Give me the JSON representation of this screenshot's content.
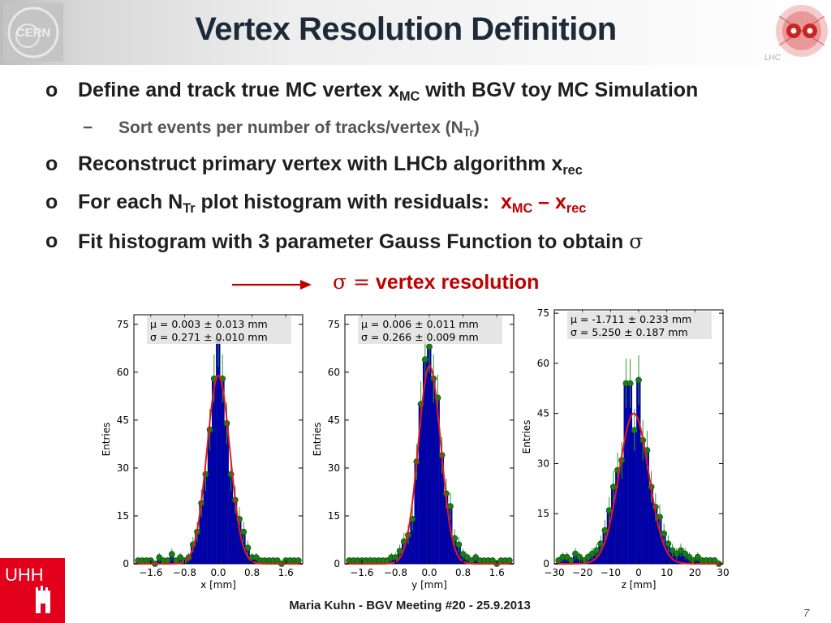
{
  "slide": {
    "title": "Vertex Resolution Definition",
    "logo_left_text": "CERN",
    "logo_right_text": "LHC",
    "logo_bottom_text": "UHH"
  },
  "bullets": [
    {
      "marker": "o",
      "text": "Define and track true MC vertex x",
      "sub": "MC",
      "tail": " with BGV toy MC Simulation"
    },
    {
      "marker": "−",
      "text": "Sort events per number of tracks/vertex (N",
      "sub": "Tr",
      "tail": ")"
    },
    {
      "marker": "o",
      "text": "Reconstruct primary vertex with LHCb algorithm x",
      "sub": "rec",
      "tail": ""
    },
    {
      "marker": "o",
      "text": "For each N",
      "sub": "Tr",
      "tail": " plot histogram with residuals:  ",
      "red_a": "x",
      "red_a_sub": "MC",
      "red_mid": " – x",
      "red_b_sub": "rec"
    },
    {
      "marker": "o",
      "text": "Fit histogram with 3 parameter Gauss Function to obtain ",
      "symbol": "σ"
    }
  ],
  "resolution": {
    "symbol": "σ =",
    "label": " vertex resolution"
  },
  "footer": {
    "author": "Maria Kuhn - BGV Meeting #20 - 25.9.2013",
    "page": "7"
  },
  "colors": {
    "title": "#1d2a3a",
    "accent_red": "#c00000",
    "bar_blue": "#0000b3",
    "fit_red": "#e31a1c",
    "point_green": "#1a7d1a"
  },
  "chart_data": [
    {
      "type": "bar",
      "xlabel": "x [mm]",
      "ylabel": "Entries",
      "xlim": [
        -2.0,
        2.0
      ],
      "ylim": [
        0,
        78
      ],
      "xticks": [
        -1.6,
        -0.8,
        0.0,
        0.8,
        1.6
      ],
      "xtick_labels": [
        "−1.6",
        "−0.8",
        "0.0",
        "0.8",
        "1.6"
      ],
      "yticks": [
        0,
        15,
        30,
        45,
        60,
        75
      ],
      "stats": [
        "μ = 0.003 ± 0.013 mm",
        "σ = 0.271 ± 0.010 mm"
      ],
      "fit": {
        "mu": 0.003,
        "sigma": 0.271,
        "amplitude": 59
      },
      "x": [
        -1.9,
        -1.8,
        -1.7,
        -1.6,
        -1.5,
        -1.4,
        -1.3,
        -1.2,
        -1.1,
        -1.0,
        -0.9,
        -0.8,
        -0.7,
        -0.6,
        -0.5,
        -0.4,
        -0.3,
        -0.2,
        -0.1,
        0.0,
        0.1,
        0.2,
        0.3,
        0.4,
        0.5,
        0.6,
        0.7,
        0.8,
        0.9,
        1.0,
        1.1,
        1.2,
        1.3,
        1.4,
        1.5,
        1.6,
        1.7,
        1.8,
        1.9
      ],
      "values": [
        1,
        1,
        1,
        1,
        0,
        2,
        1,
        1,
        3,
        1,
        2,
        1,
        2,
        6,
        10,
        19,
        28,
        42,
        58,
        70,
        58,
        44,
        28,
        20,
        14,
        10,
        5,
        2,
        2,
        1,
        1,
        1,
        1,
        1,
        0,
        1,
        1,
        1,
        1
      ]
    },
    {
      "type": "bar",
      "xlabel": "y [mm]",
      "ylabel": "Entries",
      "xlim": [
        -2.0,
        2.0
      ],
      "ylim": [
        0,
        78
      ],
      "xticks": [
        -1.6,
        -0.8,
        0.0,
        0.8,
        1.6
      ],
      "xtick_labels": [
        "−1.6",
        "−0.8",
        "0.0",
        "0.8",
        "1.6"
      ],
      "yticks": [
        0,
        15,
        30,
        45,
        60,
        75
      ],
      "stats": [
        "μ = 0.006 ± 0.011 mm",
        "σ = 0.266 ± 0.009 mm"
      ],
      "fit": {
        "mu": 0.006,
        "sigma": 0.266,
        "amplitude": 62
      },
      "x": [
        -1.9,
        -1.8,
        -1.7,
        -1.6,
        -1.5,
        -1.4,
        -1.3,
        -1.2,
        -1.1,
        -1.0,
        -0.9,
        -0.8,
        -0.7,
        -0.6,
        -0.5,
        -0.4,
        -0.3,
        -0.2,
        -0.1,
        0.0,
        0.1,
        0.2,
        0.3,
        0.4,
        0.5,
        0.6,
        0.7,
        0.8,
        0.9,
        1.0,
        1.1,
        1.2,
        1.3,
        1.4,
        1.5,
        1.6,
        1.7,
        1.8,
        1.9
      ],
      "values": [
        1,
        1,
        1,
        1,
        1,
        1,
        1,
        1,
        1,
        1,
        2,
        2,
        4,
        7,
        9,
        14,
        32,
        50,
        64,
        68,
        58,
        52,
        34,
        22,
        18,
        8,
        6,
        3,
        2,
        1,
        2,
        1,
        1,
        1,
        1,
        0,
        1,
        1,
        1
      ]
    },
    {
      "type": "bar",
      "xlabel": "z [mm]",
      "ylabel": "Entries",
      "xlim": [
        -30,
        30
      ],
      "ylim": [
        0,
        76
      ],
      "xticks": [
        -30,
        -20,
        -10,
        0,
        10,
        20,
        30
      ],
      "xtick_labels": [
        "−30",
        "−20",
        "−10",
        "0",
        "10",
        "20",
        "30"
      ],
      "yticks": [
        0,
        15,
        30,
        45,
        60,
        75
      ],
      "stats": [
        "μ = -1.711 ± 0.233 mm",
        "σ = 5.250 ± 0.187 mm"
      ],
      "fit": {
        "mu": -1.711,
        "sigma": 5.25,
        "amplitude": 45
      },
      "x": [
        -28.5,
        -27,
        -25.5,
        -24,
        -22.5,
        -21,
        -19.5,
        -18,
        -16.5,
        -15,
        -13.5,
        -12,
        -10.5,
        -9,
        -7.5,
        -6,
        -4.5,
        -3,
        -1.5,
        0,
        1.5,
        3,
        4.5,
        6,
        7.5,
        9,
        10.5,
        12,
        13.5,
        15,
        16.5,
        18,
        19.5,
        21,
        22.5,
        24,
        25.5,
        27,
        28.5
      ],
      "values": [
        1,
        2,
        2,
        1,
        3,
        2,
        1,
        2,
        3,
        4,
        6,
        10,
        16,
        23,
        28,
        31,
        54,
        54,
        40,
        55,
        37,
        34,
        23,
        17,
        14,
        9,
        6,
        4,
        3,
        4,
        3,
        2,
        1,
        2,
        1,
        1,
        1,
        1,
        0
      ]
    }
  ]
}
